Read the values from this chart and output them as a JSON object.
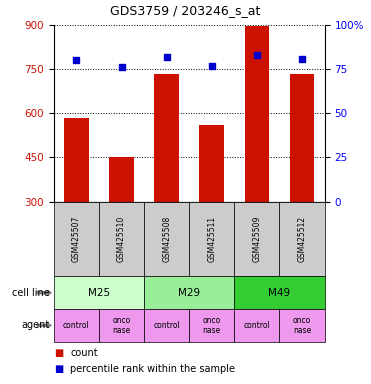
{
  "title": "GDS3759 / 203246_s_at",
  "samples": [
    "GSM425507",
    "GSM425510",
    "GSM425508",
    "GSM425511",
    "GSM425509",
    "GSM425512"
  ],
  "counts": [
    585,
    450,
    735,
    560,
    895,
    735
  ],
  "percentile_ranks": [
    80,
    76,
    82,
    77,
    83,
    81
  ],
  "ylim_left": [
    300,
    900
  ],
  "yticks_left": [
    300,
    450,
    600,
    750,
    900
  ],
  "ylim_right": [
    0,
    100
  ],
  "yticks_right": [
    0,
    25,
    50,
    75,
    100
  ],
  "ytick_labels_right": [
    "0",
    "25",
    "50",
    "75",
    "100%"
  ],
  "cell_lines": [
    [
      "M25",
      0,
      2
    ],
    [
      "M29",
      2,
      4
    ],
    [
      "M49",
      4,
      6
    ]
  ],
  "cell_line_colors": [
    "#ccffcc",
    "#99ee99",
    "#33cc33"
  ],
  "agents": [
    "control",
    "onconase",
    "control",
    "onconase",
    "control",
    "onconase"
  ],
  "agent_color": "#ee99ee",
  "bar_color": "#cc1100",
  "dot_color": "#0000cc",
  "bg_color": "#ffffff"
}
